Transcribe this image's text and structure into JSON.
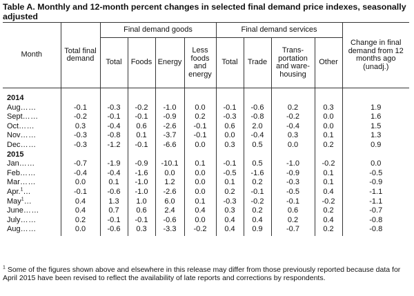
{
  "title": "Table A. Monthly and 12-month percent changes in selected final demand price indexes, seasonally adjusted",
  "headers": {
    "month": "Month",
    "total": "Total final demand",
    "goods_group": "Final demand goods",
    "services_group": "Final demand services",
    "change_12": "Change in final demand from 12 months ago (unadj.)",
    "goods_total": "Total",
    "goods_foods": "Foods",
    "goods_energy": "Energy",
    "goods_less": "Less foods and energy",
    "svc_total": "Total",
    "svc_trade": "Trade",
    "svc_transport": "Trans- portation and ware- housing",
    "svc_other": "Other"
  },
  "years": [
    "2014",
    "2015"
  ],
  "rows_2014": [
    {
      "month": "Aug",
      "dots": "……",
      "sup": "",
      "v": [
        "-0.1",
        "-0.3",
        "-0.2",
        "-1.0",
        "0.0",
        "-0.1",
        "-0.6",
        "0.2",
        "0.3",
        "1.9"
      ]
    },
    {
      "month": "Sept",
      "dots": "……",
      "sup": "",
      "v": [
        "-0.2",
        "-0.1",
        "-0.1",
        "-0.9",
        "0.2",
        "-0.3",
        "-0.8",
        "-0.2",
        "0.0",
        "1.6"
      ]
    },
    {
      "month": "Oct",
      "dots": "……",
      "sup": "",
      "v": [
        "0.3",
        "-0.4",
        "0.6",
        "-2.6",
        "-0.1",
        "0.6",
        "2.0",
        "-0.4",
        "0.0",
        "1.5"
      ]
    },
    {
      "month": "Nov",
      "dots": "……",
      "sup": "",
      "v": [
        "-0.3",
        "-0.8",
        "0.1",
        "-3.7",
        "-0.1",
        "0.0",
        "-0.4",
        "0.3",
        "0.1",
        "1.3"
      ]
    },
    {
      "month": "Dec",
      "dots": "……",
      "sup": "",
      "v": [
        "-0.3",
        "-1.2",
        "-0.1",
        "-6.6",
        "0.0",
        "0.3",
        "0.5",
        "0.0",
        "0.2",
        "0.9"
      ]
    }
  ],
  "rows_2015": [
    {
      "month": "Jan",
      "dots": "……",
      "sup": "",
      "v": [
        "-0.7",
        "-1.9",
        "-0.9",
        "-10.1",
        "0.1",
        "-0.1",
        "0.5",
        "-1.0",
        "-0.2",
        "0.0"
      ]
    },
    {
      "month": "Feb",
      "dots": "……",
      "sup": "",
      "v": [
        "-0.4",
        "-0.4",
        "-1.6",
        "0.0",
        "0.0",
        "-0.5",
        "-1.6",
        "-0.9",
        "0.1",
        "-0.5"
      ]
    },
    {
      "month": "Mar",
      "dots": "……",
      "sup": "",
      "v": [
        "0.0",
        "0.1",
        "-1.0",
        "1.2",
        "0.0",
        "0.1",
        "0.2",
        "-0.3",
        "0.1",
        "-0.9"
      ]
    },
    {
      "month": "Apr.",
      "dots": "…",
      "sup": "1",
      "v": [
        "-0.1",
        "-0.6",
        "-1.0",
        "-2.6",
        "0.0",
        "0.2",
        "-0.1",
        "-0.5",
        "0.4",
        "-1.1"
      ]
    },
    {
      "month": "May",
      "dots": "…",
      "sup": "1",
      "v": [
        "0.4",
        "1.3",
        "1.0",
        "6.0",
        "0.1",
        "-0.3",
        "-0.2",
        "-0.1",
        "-0.2",
        "-1.1"
      ]
    },
    {
      "month": "June",
      "dots": "……",
      "sup": "",
      "v": [
        "0.4",
        "0.7",
        "0.6",
        "2.4",
        "0.4",
        "0.3",
        "0.2",
        "0.6",
        "0.2",
        "-0.7"
      ]
    },
    {
      "month": "July",
      "dots": "……",
      "sup": "",
      "v": [
        "0.2",
        "-0.1",
        "-0.1",
        "-0.6",
        "0.0",
        "0.4",
        "0.4",
        "0.2",
        "0.4",
        "-0.8"
      ]
    },
    {
      "month": "Aug",
      "dots": "……",
      "sup": "",
      "v": [
        "0.0",
        "-0.6",
        "0.3",
        "-3.3",
        "-0.2",
        "0.4",
        "0.9",
        "-0.7",
        "0.2",
        "-0.8"
      ]
    }
  ],
  "footnote": {
    "marker": "1",
    "text": "Some of the figures shown above and elsewhere in this release may differ from those previously reported because data for April 2015 have been revised to reflect the availability of late reports and corrections by respondents."
  }
}
